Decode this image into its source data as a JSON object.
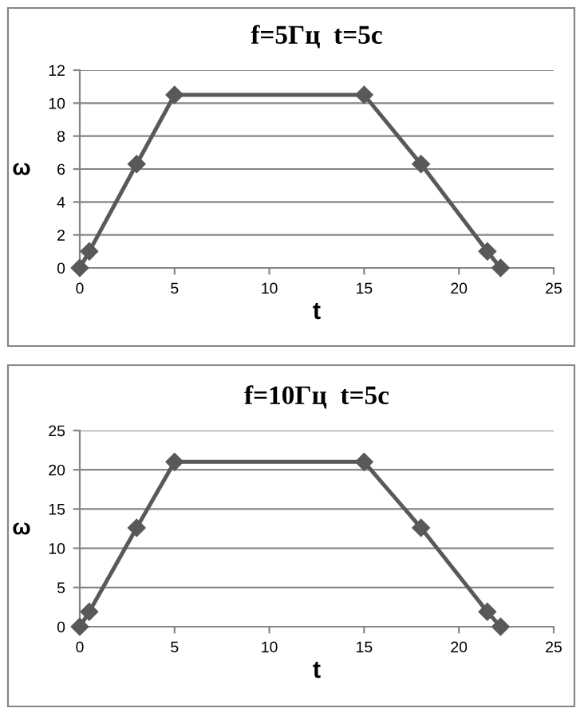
{
  "chart_data": [
    {
      "type": "line",
      "title": "f=5Гц  t=5с",
      "xlabel": "t",
      "ylabel": "ω",
      "x": [
        0,
        0.5,
        3,
        5,
        15,
        18,
        21.5,
        22.2
      ],
      "series": [
        {
          "color": "#595959",
          "values": [
            0,
            1,
            6.3,
            10.5,
            10.5,
            6.3,
            1,
            0
          ]
        }
      ],
      "xlim": [
        0,
        25
      ],
      "xticks": [
        0,
        5,
        10,
        15,
        20,
        25
      ],
      "ylim": [
        0,
        12
      ],
      "yticks": [
        0,
        2,
        4,
        6,
        8,
        10,
        12
      ],
      "grid": "y",
      "marker": "diamond",
      "line_style": "solid"
    },
    {
      "type": "line",
      "title": "f=10Гц  t=5с",
      "xlabel": "t",
      "ylabel": "ω",
      "x": [
        0,
        0.5,
        3,
        5,
        15,
        18,
        21.5,
        22.2
      ],
      "series": [
        {
          "color": "#595959",
          "values": [
            0,
            1.9,
            12.6,
            21,
            21,
            12.6,
            1.9,
            0
          ]
        }
      ],
      "xlim": [
        0,
        25
      ],
      "xticks": [
        0,
        5,
        10,
        15,
        20,
        25
      ],
      "ylim": [
        0,
        25
      ],
      "yticks": [
        0,
        5,
        10,
        15,
        20,
        25
      ],
      "grid": "y",
      "marker": "diamond",
      "line_style": "solid"
    }
  ]
}
